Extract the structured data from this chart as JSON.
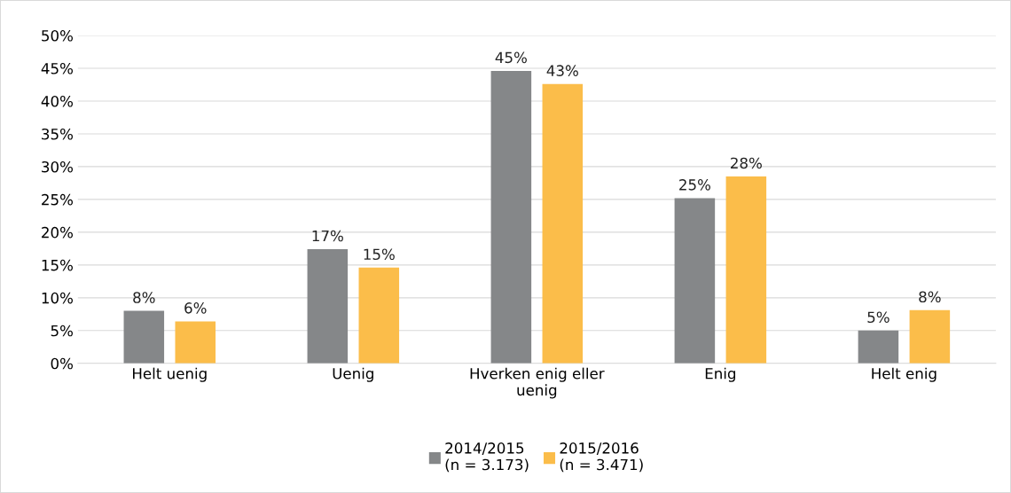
{
  "chart_data": {
    "type": "bar",
    "categories": [
      "Helt uenig",
      "Uenig",
      "Hverken enig eller uenig",
      "Enig",
      "Helt enig"
    ],
    "series": [
      {
        "name": "2014/2015\n(n = 3.173)",
        "color": "#858789",
        "values": [
          8.0,
          17.4,
          44.6,
          25.2,
          5.0
        ],
        "value_labels": [
          "8%",
          "17%",
          "45%",
          "25%",
          "5%"
        ]
      },
      {
        "name": "2015/2016\n(n = 3.471)",
        "color": "#fbbd4a",
        "values": [
          6.4,
          14.6,
          42.6,
          28.5,
          8.1
        ],
        "value_labels": [
          "6%",
          "15%",
          "43%",
          "28%",
          "8%"
        ]
      }
    ],
    "ylim": [
      0,
      50
    ],
    "yticks": [
      {
        "value": 0,
        "label": "0%"
      },
      {
        "value": 5,
        "label": "5%"
      },
      {
        "value": 10,
        "label": "10%"
      },
      {
        "value": 15,
        "label": "15%"
      },
      {
        "value": 20,
        "label": "20%"
      },
      {
        "value": 25,
        "label": "25%"
      },
      {
        "value": 30,
        "label": "30%"
      },
      {
        "value": 35,
        "label": "35%"
      },
      {
        "value": 40,
        "label": "40%"
      },
      {
        "value": 45,
        "label": "45%"
      },
      {
        "value": 50,
        "label": "50%"
      }
    ],
    "grid": "y",
    "legend": "bottom"
  }
}
